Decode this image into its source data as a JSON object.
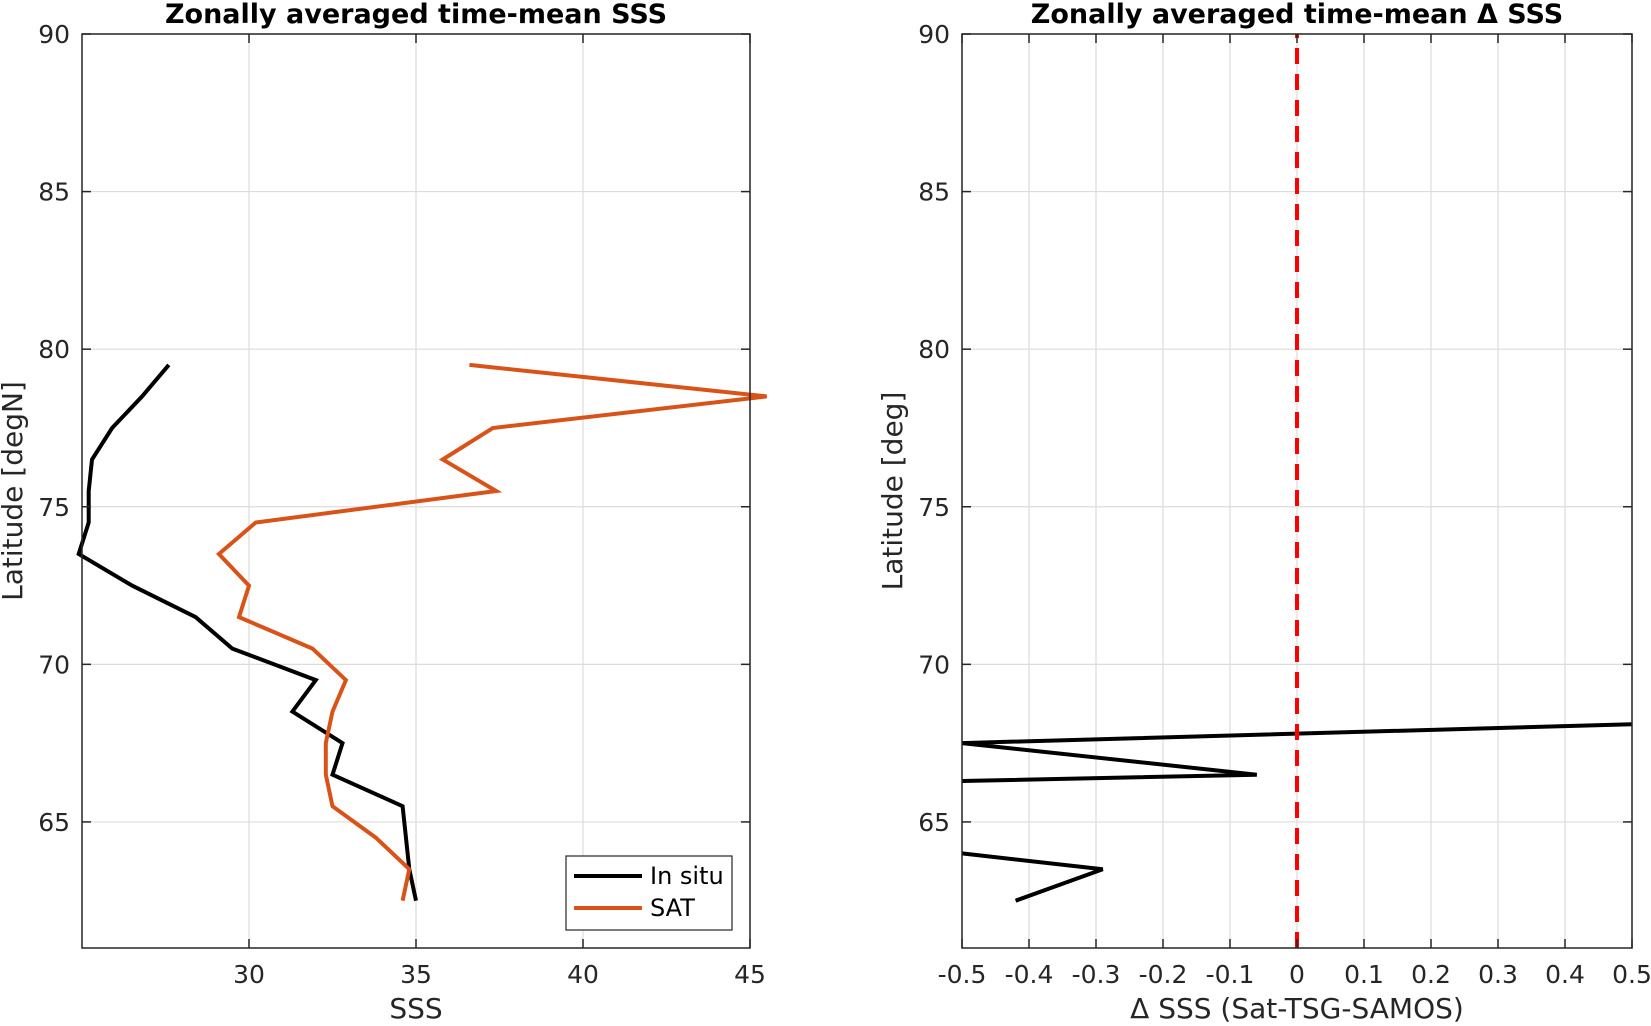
{
  "chart_data": [
    {
      "type": "line",
      "title": "Zonally averaged time-mean SSS",
      "xlabel": "SSS",
      "ylabel": "Latitude [degN]",
      "xlim": [
        25,
        45
      ],
      "ylim": [
        61,
        90
      ],
      "xticks": [
        30,
        35,
        40,
        45
      ],
      "yticks": [
        65,
        70,
        75,
        80,
        85,
        90
      ],
      "grid": true,
      "legend_location": "bottom-right",
      "series": [
        {
          "name": "In situ",
          "color": "#000000",
          "x": [
            27.6,
            26.8,
            25.9,
            25.3,
            25.2,
            25.2,
            24.9,
            26.5,
            28.4,
            29.5,
            32.0,
            31.3,
            32.8,
            32.5,
            34.6,
            34.8,
            35.0
          ],
          "y": [
            79.5,
            78.5,
            77.5,
            76.5,
            75.5,
            74.5,
            73.5,
            72.5,
            71.5,
            70.5,
            69.5,
            68.5,
            67.5,
            66.5,
            65.5,
            63.5,
            62.5
          ]
        },
        {
          "name": "SAT",
          "color": "#d95319",
          "x": [
            36.6,
            45.5,
            37.3,
            35.8,
            37.4,
            30.2,
            29.1,
            30.0,
            29.7,
            31.9,
            32.9,
            32.5,
            32.3,
            32.3,
            32.5,
            33.8,
            34.8,
            34.6
          ],
          "y": [
            79.5,
            78.5,
            77.5,
            76.5,
            75.5,
            74.5,
            73.5,
            72.5,
            71.5,
            70.5,
            69.5,
            68.5,
            67.5,
            66.5,
            65.5,
            64.5,
            63.5,
            62.5
          ]
        }
      ]
    },
    {
      "type": "line",
      "title": "Zonally averaged time-mean Δ SSS",
      "xlabel": "Δ SSS (Sat-TSG-SAMOS)",
      "ylabel": "Latitude [deg]",
      "xlim": [
        -0.5,
        0.5
      ],
      "ylim": [
        61,
        90
      ],
      "xticks": [
        -0.5,
        -0.4,
        -0.3,
        -0.2,
        -0.1,
        0,
        0.1,
        0.2,
        0.3,
        0.4,
        0.5
      ],
      "yticks": [
        65,
        70,
        75,
        80,
        85,
        90
      ],
      "grid": true,
      "series": [
        {
          "color": "#000000",
          "x": [
            0.5,
            -0.5,
            -0.06,
            -0.5
          ],
          "y": [
            68.1,
            67.5,
            66.5,
            66.3
          ]
        },
        {
          "color": "#000000",
          "x": [
            -0.5,
            -0.29,
            -0.42
          ],
          "y": [
            64.0,
            63.5,
            62.5
          ]
        },
        {
          "color": "#ff0000",
          "style": "dashed",
          "x": [
            0,
            0
          ],
          "y": [
            61,
            90
          ]
        }
      ]
    }
  ]
}
